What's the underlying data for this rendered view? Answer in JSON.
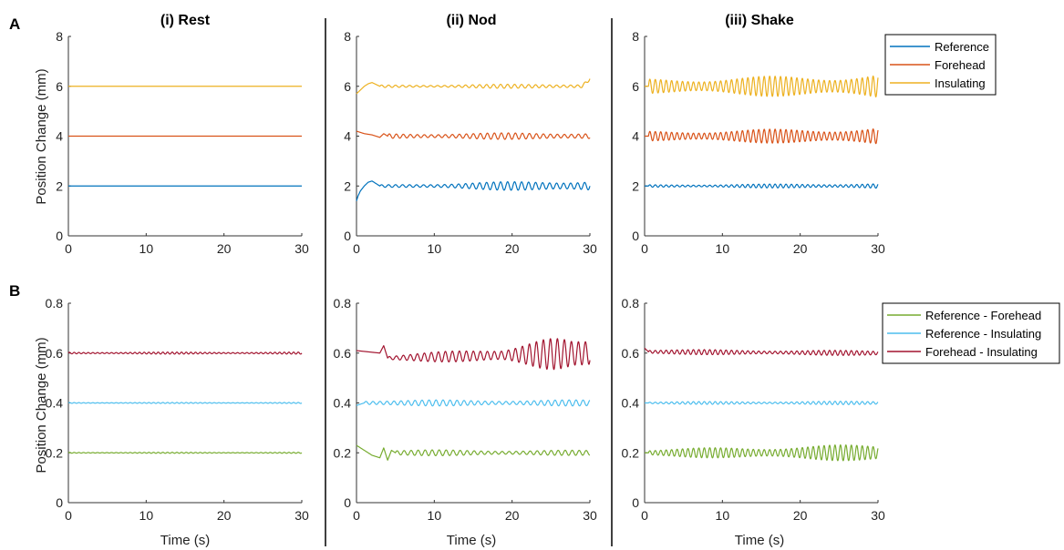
{
  "figure": {
    "row_labels": [
      "A",
      "B"
    ],
    "column_titles": [
      "(i) Rest",
      "(ii) Nod",
      "(iii) Shake"
    ],
    "y_axis_label": "Position Change (mm)",
    "x_axis_label": "Time (s)"
  },
  "chart_data": [
    {
      "type": "line",
      "row": "A",
      "column": "(i) Rest",
      "title": "(i) Rest",
      "xlabel": "",
      "ylabel": "Position Change (mm)",
      "xlim": [
        0,
        30
      ],
      "ylim": [
        0,
        8
      ],
      "xticks": [
        0,
        10,
        20,
        30
      ],
      "yticks": [
        0,
        2,
        4,
        6,
        8
      ],
      "series": [
        {
          "name": "Reference",
          "color": "#0072BD",
          "baseline": 2.0,
          "x": [
            0,
            30
          ],
          "y": [
            2.0,
            2.0
          ],
          "oscillation": {
            "amp_start": 0.0,
            "amp_end": 0.0,
            "amp_peak_at": null,
            "period": 1.0
          }
        },
        {
          "name": "Forehead",
          "color": "#D95319",
          "baseline": 4.0,
          "x": [
            0,
            30
          ],
          "y": [
            4.0,
            4.0
          ],
          "oscillation": {
            "amp_start": 0.0,
            "amp_end": 0.0,
            "amp_peak_at": null,
            "period": 1.0
          }
        },
        {
          "name": "Insulating",
          "color": "#EDB120",
          "baseline": 6.0,
          "x": [
            0,
            30
          ],
          "y": [
            6.0,
            6.0
          ],
          "oscillation": {
            "amp_start": 0.0,
            "amp_end": 0.0,
            "amp_peak_at": null,
            "period": 1.0
          }
        }
      ]
    },
    {
      "type": "line",
      "row": "A",
      "column": "(ii) Nod",
      "title": "(ii) Nod",
      "xlabel": "",
      "ylabel": "",
      "xlim": [
        0,
        30
      ],
      "ylim": [
        0,
        8
      ],
      "xticks": [
        0,
        10,
        20,
        30
      ],
      "yticks": [
        0,
        2,
        4,
        6,
        8
      ],
      "series": [
        {
          "name": "Reference",
          "color": "#0072BD",
          "baseline": 2.0,
          "x": [
            0,
            0.2,
            0.5,
            1.0,
            1.5,
            2.0,
            2.5,
            3.0,
            30
          ],
          "y": [
            1.4,
            1.6,
            1.8,
            2.0,
            2.15,
            2.2,
            2.1,
            2.0,
            2.0
          ],
          "oscillation": {
            "amp_start": 0.05,
            "amp_end": 0.25,
            "amp_peak_at": null,
            "period": 0.9,
            "start_x": 3.0
          }
        },
        {
          "name": "Forehead",
          "color": "#D95319",
          "baseline": 4.0,
          "x": [
            0,
            1.0,
            2.0,
            3.0,
            3.5,
            4.0,
            30
          ],
          "y": [
            4.2,
            4.1,
            4.05,
            3.95,
            4.1,
            4.0,
            4.0
          ],
          "oscillation": {
            "amp_start": 0.1,
            "amp_end": 0.15,
            "amp_peak_at": null,
            "period": 0.9,
            "start_x": 4.0
          }
        },
        {
          "name": "Insulating",
          "color": "#EDB120",
          "baseline": 6.0,
          "x": [
            0,
            0.5,
            1.0,
            1.5,
            2.0,
            3.0,
            29.0,
            30
          ],
          "y": [
            5.7,
            5.85,
            6.0,
            6.1,
            6.15,
            6.0,
            6.0,
            6.3
          ],
          "oscillation": {
            "amp_start": 0.05,
            "amp_end": 0.1,
            "amp_peak_at": null,
            "period": 0.9,
            "start_x": 3.0
          }
        }
      ]
    },
    {
      "type": "line",
      "row": "A",
      "column": "(iii) Shake",
      "title": "(iii) Shake",
      "xlabel": "",
      "ylabel": "",
      "xlim": [
        0,
        30
      ],
      "ylim": [
        0,
        8
      ],
      "xticks": [
        0,
        10,
        20,
        30
      ],
      "yticks": [
        0,
        2,
        4,
        6,
        8
      ],
      "series": [
        {
          "name": "Reference",
          "color": "#0072BD",
          "baseline": 2.0,
          "x": [
            0,
            30
          ],
          "y": [
            2.0,
            2.0
          ],
          "oscillation": {
            "amp_start": 0.05,
            "amp_end": 0.1,
            "amp_peak_at": null,
            "period": 0.7,
            "start_x": 0.5
          }
        },
        {
          "name": "Forehead",
          "color": "#D95319",
          "baseline": 4.0,
          "x": [
            0,
            30
          ],
          "y": [
            4.0,
            4.0
          ],
          "oscillation": {
            "amp_start": 0.2,
            "amp_end": 0.35,
            "amp_peak_at": null,
            "period": 0.7,
            "start_x": 0.5
          }
        },
        {
          "name": "Insulating",
          "color": "#EDB120",
          "baseline": 6.0,
          "x": [
            0,
            30
          ],
          "y": [
            6.0,
            6.0
          ],
          "oscillation": {
            "amp_start": 0.3,
            "amp_end": 0.5,
            "amp_peak_at": null,
            "period": 0.7,
            "start_x": 0.5
          }
        }
      ],
      "legend": {
        "position": "right",
        "entries": [
          "Reference",
          "Forehead",
          "Insulating"
        ]
      }
    },
    {
      "type": "line",
      "row": "B",
      "column": "(i) Rest",
      "title": "",
      "xlabel": "Time (s)",
      "ylabel": "Position Change (mm)",
      "xlim": [
        0,
        30
      ],
      "ylim": [
        0,
        0.8
      ],
      "xticks": [
        0,
        10,
        20,
        30
      ],
      "yticks": [
        0,
        0.2,
        0.4,
        0.6,
        0.8
      ],
      "series": [
        {
          "name": "Reference - Forehead",
          "color": "#77AC30",
          "baseline": 0.2,
          "x": [
            0,
            30
          ],
          "y": [
            0.2,
            0.2
          ],
          "oscillation": {
            "amp_start": 0.002,
            "amp_end": 0.002,
            "amp_peak_at": null,
            "period": 0.6
          }
        },
        {
          "name": "Reference - Insulating",
          "color": "#4DBEEE",
          "baseline": 0.4,
          "x": [
            0,
            30
          ],
          "y": [
            0.4,
            0.4
          ],
          "oscillation": {
            "amp_start": 0.002,
            "amp_end": 0.002,
            "amp_peak_at": null,
            "period": 0.6
          }
        },
        {
          "name": "Forehead - Insulating",
          "color": "#A2142F",
          "baseline": 0.6,
          "x": [
            0,
            30
          ],
          "y": [
            0.6,
            0.6
          ],
          "oscillation": {
            "amp_start": 0.004,
            "amp_end": 0.004,
            "amp_peak_at": null,
            "period": 0.6
          }
        }
      ]
    },
    {
      "type": "line",
      "row": "B",
      "column": "(ii) Nod",
      "title": "",
      "xlabel": "Time (s)",
      "ylabel": "",
      "xlim": [
        0,
        30
      ],
      "ylim": [
        0,
        0.8
      ],
      "xticks": [
        0,
        10,
        20,
        30
      ],
      "yticks": [
        0,
        0.2,
        0.4,
        0.6,
        0.8
      ],
      "series": [
        {
          "name": "Reference - Forehead",
          "color": "#77AC30",
          "baseline": 0.2,
          "x": [
            0,
            1.0,
            2.0,
            3.0,
            3.5,
            4.0,
            4.5,
            5.0,
            30
          ],
          "y": [
            0.23,
            0.21,
            0.19,
            0.18,
            0.22,
            0.17,
            0.21,
            0.2,
            0.2
          ],
          "oscillation": {
            "amp_start": 0.012,
            "amp_end": 0.01,
            "amp_peak_at": null,
            "period": 0.9,
            "start_x": 5.0
          }
        },
        {
          "name": "Reference - Insulating",
          "color": "#4DBEEE",
          "baseline": 0.4,
          "x": [
            0,
            1.0,
            30
          ],
          "y": [
            0.39,
            0.4,
            0.4
          ],
          "oscillation": {
            "amp_start": 0.012,
            "amp_end": 0.012,
            "amp_peak_at": null,
            "period": 0.9,
            "start_x": 1.0
          }
        },
        {
          "name": "Forehead - Insulating",
          "color": "#A2142F",
          "baseline": 0.6,
          "x": [
            0,
            3.0,
            3.5,
            4.0,
            30
          ],
          "y": [
            0.61,
            0.6,
            0.63,
            0.58,
            0.6
          ],
          "oscillation": {
            "amp_start": 0.01,
            "amp_end": 0.05,
            "amp_peak_at": 24,
            "amp_peak": 0.07,
            "period": 0.9,
            "start_x": 4.0
          }
        }
      ]
    },
    {
      "type": "line",
      "row": "B",
      "column": "(iii) Shake",
      "title": "",
      "xlabel": "Time (s)",
      "ylabel": "",
      "xlim": [
        0,
        30
      ],
      "ylim": [
        0,
        0.8
      ],
      "xticks": [
        0,
        10,
        20,
        30
      ],
      "yticks": [
        0,
        0.2,
        0.4,
        0.6,
        0.8
      ],
      "series": [
        {
          "name": "Reference - Forehead",
          "color": "#77AC30",
          "baseline": 0.2,
          "x": [
            0,
            30
          ],
          "y": [
            0.2,
            0.2
          ],
          "oscillation": {
            "amp_start": 0.015,
            "amp_end": 0.035,
            "amp_peak_at": null,
            "period": 0.7,
            "start_x": 0.5
          }
        },
        {
          "name": "Reference - Insulating",
          "color": "#4DBEEE",
          "baseline": 0.4,
          "x": [
            0,
            30
          ],
          "y": [
            0.4,
            0.4
          ],
          "oscillation": {
            "amp_start": 0.005,
            "amp_end": 0.007,
            "amp_peak_at": null,
            "period": 0.7,
            "start_x": 0.5
          }
        },
        {
          "name": "Forehead - Insulating",
          "color": "#A2142F",
          "baseline": 0.6,
          "x": [
            0,
            0.5,
            30
          ],
          "y": [
            0.62,
            0.605,
            0.6
          ],
          "oscillation": {
            "amp_start": 0.01,
            "amp_end": 0.01,
            "amp_peak_at": null,
            "period": 0.7,
            "start_x": 0.5
          }
        }
      ],
      "legend": {
        "position": "right",
        "entries": [
          "Reference - Forehead",
          "Reference - Insulating",
          "Forehead - Insulating"
        ]
      }
    }
  ]
}
